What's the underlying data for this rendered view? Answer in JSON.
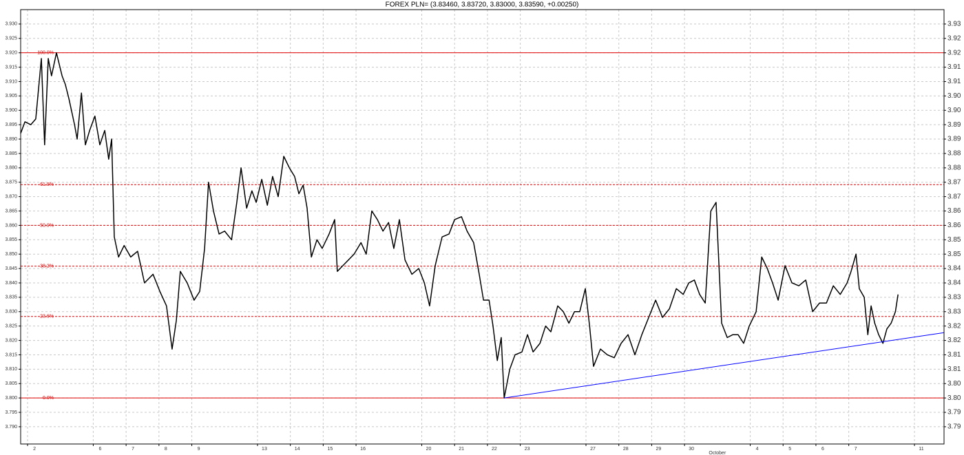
{
  "chart_data": {
    "type": "line",
    "title": "FOREX PLN= (3.83460, 3.83720, 3.83000, 3.83590, +0.00250)",
    "color": "#000000",
    "x": [
      -0.21,
      -0.08,
      0.1,
      0.25,
      0.42,
      0.52,
      0.63,
      0.73,
      0.88,
      1.05,
      1.15,
      1.26,
      1.43,
      1.51,
      1.64,
      1.76,
      1.89,
      2.05,
      2.2,
      2.35,
      2.47,
      2.56,
      2.64,
      2.77,
      2.94,
      3.14,
      3.35,
      3.56,
      3.82,
      4.03,
      4.23,
      4.4,
      4.53,
      4.65,
      4.86,
      5.07,
      5.24,
      5.39,
      5.51,
      5.66,
      5.83,
      6.0,
      6.21,
      6.37,
      6.5,
      6.67,
      6.83,
      6.96,
      7.13,
      7.3,
      7.46,
      7.63,
      7.8,
      7.97,
      8.13,
      8.26,
      8.39,
      8.51,
      8.64,
      8.81,
      8.97,
      9.18,
      9.35,
      9.43,
      9.6,
      9.77,
      9.94,
      10.15,
      10.31,
      10.48,
      10.65,
      10.82,
      10.99,
      11.15,
      11.32,
      11.49,
      11.7,
      11.91,
      12.08,
      12.24,
      12.41,
      12.62,
      12.83,
      13.0,
      13.21,
      13.38,
      13.58,
      13.75,
      13.88,
      14.05,
      14.17,
      14.3,
      14.42,
      14.51,
      14.68,
      14.84,
      15.05,
      15.22,
      15.39,
      15.6,
      15.77,
      15.93,
      16.14,
      16.31,
      16.48,
      16.65,
      16.81,
      16.98,
      17.11,
      17.23,
      17.44,
      17.65,
      17.86,
      18.07,
      18.28,
      18.49,
      18.7,
      18.91,
      19.12,
      19.33,
      19.54,
      19.75,
      19.96,
      20.13,
      20.3,
      20.46,
      20.63,
      20.8,
      20.96,
      21.13,
      21.3,
      21.47,
      21.63,
      21.8,
      21.97,
      22.18,
      22.35,
      22.52,
      22.68,
      22.85,
      23.06,
      23.27,
      23.48,
      23.69,
      23.9,
      24.11,
      24.32,
      24.53,
      24.74,
      24.95,
      25.07,
      25.22,
      25.32,
      25.47,
      25.58,
      25.68,
      25.79,
      25.91,
      26.04,
      26.16,
      26.29,
      26.42,
      26.5
    ],
    "values": [
      3.892,
      3.896,
      3.895,
      3.897,
      3.918,
      3.888,
      3.918,
      3.912,
      3.92,
      3.912,
      3.909,
      3.904,
      3.895,
      3.89,
      3.906,
      3.888,
      3.893,
      3.898,
      3.888,
      3.893,
      3.883,
      3.89,
      3.856,
      3.849,
      3.853,
      3.849,
      3.851,
      3.84,
      3.843,
      3.837,
      3.832,
      3.817,
      3.827,
      3.844,
      3.84,
      3.834,
      3.837,
      3.852,
      3.875,
      3.865,
      3.857,
      3.858,
      3.855,
      3.868,
      3.88,
      3.866,
      3.872,
      3.868,
      3.876,
      3.867,
      3.877,
      3.87,
      3.884,
      3.88,
      3.877,
      3.871,
      3.874,
      3.866,
      3.849,
      3.855,
      3.852,
      3.857,
      3.862,
      3.844,
      3.846,
      3.848,
      3.85,
      3.854,
      3.85,
      3.865,
      3.862,
      3.858,
      3.861,
      3.852,
      3.862,
      3.848,
      3.843,
      3.845,
      3.84,
      3.832,
      3.846,
      3.856,
      3.857,
      3.862,
      3.863,
      3.858,
      3.854,
      3.843,
      3.834,
      3.834,
      3.825,
      3.813,
      3.821,
      3.8,
      3.81,
      3.815,
      3.816,
      3.822,
      3.816,
      3.819,
      3.825,
      3.823,
      3.832,
      3.83,
      3.826,
      3.83,
      3.83,
      3.838,
      3.825,
      3.811,
      3.817,
      3.815,
      3.814,
      3.819,
      3.822,
      3.815,
      3.822,
      3.828,
      3.834,
      3.828,
      3.831,
      3.838,
      3.836,
      3.84,
      3.841,
      3.836,
      3.833,
      3.865,
      3.868,
      3.826,
      3.821,
      3.822,
      3.822,
      3.819,
      3.825,
      3.83,
      3.849,
      3.845,
      3.84,
      3.834,
      3.846,
      3.84,
      3.839,
      3.841,
      3.83,
      3.833,
      3.833,
      3.839,
      3.836,
      3.84,
      3.844,
      3.85,
      3.838,
      3.835,
      3.822,
      3.832,
      3.826,
      3.822,
      3.819,
      3.824,
      3.826,
      3.83,
      3.836
    ],
    "xlim": [
      -0.21,
      27.9
    ],
    "xticks": [
      {
        "value": 0,
        "label": "2"
      },
      {
        "value": 2,
        "label": "6"
      },
      {
        "value": 3,
        "label": "7"
      },
      {
        "value": 4,
        "label": "8"
      },
      {
        "value": 5,
        "label": "9"
      },
      {
        "value": 7,
        "label": "13"
      },
      {
        "value": 8,
        "label": "14"
      },
      {
        "value": 9,
        "label": "15"
      },
      {
        "value": 10,
        "label": "16"
      },
      {
        "value": 12,
        "label": "20"
      },
      {
        "value": 13,
        "label": "21"
      },
      {
        "value": 14,
        "label": "22"
      },
      {
        "value": 15,
        "label": "23"
      },
      {
        "value": 17,
        "label": "27"
      },
      {
        "value": 18,
        "label": "28"
      },
      {
        "value": 19,
        "label": "29"
      },
      {
        "value": 20,
        "label": "30"
      },
      {
        "value": 22,
        "label": "4"
      },
      {
        "value": 23,
        "label": "5"
      },
      {
        "value": 24,
        "label": "6"
      },
      {
        "value": 25,
        "label": "7"
      },
      {
        "value": 27,
        "label": "11"
      }
    ],
    "ylim": [
      3.784,
      3.935
    ],
    "yticks": [
      {
        "value": 3.79,
        "label": "3.790"
      },
      {
        "value": 3.795,
        "label": "3.795"
      },
      {
        "value": 3.8,
        "label": "3.800"
      },
      {
        "value": 3.805,
        "label": "3.805"
      },
      {
        "value": 3.81,
        "label": "3.810"
      },
      {
        "value": 3.815,
        "label": "3.815"
      },
      {
        "value": 3.82,
        "label": "3.820"
      },
      {
        "value": 3.825,
        "label": "3.825"
      },
      {
        "value": 3.83,
        "label": "3.830"
      },
      {
        "value": 3.835,
        "label": "3.835"
      },
      {
        "value": 3.84,
        "label": "3.840"
      },
      {
        "value": 3.845,
        "label": "3.845"
      },
      {
        "value": 3.85,
        "label": "3.850"
      },
      {
        "value": 3.855,
        "label": "3.855"
      },
      {
        "value": 3.86,
        "label": "3.860"
      },
      {
        "value": 3.865,
        "label": "3.865"
      },
      {
        "value": 3.87,
        "label": "3.870"
      },
      {
        "value": 3.875,
        "label": "3.875"
      },
      {
        "value": 3.88,
        "label": "3.880"
      },
      {
        "value": 3.885,
        "label": "3.885"
      },
      {
        "value": 3.89,
        "label": "3.890"
      },
      {
        "value": 3.895,
        "label": "3.895"
      },
      {
        "value": 3.9,
        "label": "3.900"
      },
      {
        "value": 3.905,
        "label": "3.905"
      },
      {
        "value": 3.91,
        "label": "3.910"
      },
      {
        "value": 3.915,
        "label": "3.915"
      },
      {
        "value": 3.92,
        "label": "3.920"
      },
      {
        "value": 3.925,
        "label": "3.925"
      },
      {
        "value": 3.93,
        "label": "3.930"
      }
    ],
    "y2lim": [
      3.784,
      3.935
    ],
    "y2ticks": [
      3.79,
      {
        "value": 3.795,
        "label": "3.79"
      },
      {
        "value": 3.8,
        "label": "3.80"
      },
      {
        "value": 3.805,
        "label": "3.80"
      },
      3.81,
      {
        "value": 3.815,
        "label": "3.81"
      },
      3.82,
      {
        "value": 3.825,
        "label": "3.82"
      },
      3.83,
      {
        "value": 3.835,
        "label": "3.83"
      },
      3.84,
      {
        "value": 3.845,
        "label": "3.84"
      },
      3.85,
      {
        "value": 3.855,
        "label": "3.85"
      },
      3.86,
      {
        "value": 3.865,
        "label": "3.86"
      },
      3.87,
      {
        "value": 3.875,
        "label": "3.87"
      },
      3.88,
      {
        "value": 3.885,
        "label": "3.88"
      },
      3.89,
      {
        "value": 3.895,
        "label": "3.89"
      },
      {
        "value": 3.9,
        "label": "3.90"
      },
      {
        "value": 3.905,
        "label": "3.90"
      },
      3.91,
      {
        "value": 3.915,
        "label": "3.91"
      },
      3.92,
      {
        "value": 3.925,
        "label": "3.92"
      },
      3.93
    ],
    "grid": true,
    "levels_color": "#e00000",
    "levels": [
      {
        "label": "100.0%",
        "value": 3.92,
        "style": "solid"
      },
      {
        "label": "61.8%",
        "value": 3.87416,
        "style": "dashed"
      },
      {
        "label": "50.0%",
        "value": 3.86,
        "style": "dashed"
      },
      {
        "label": "38.2%",
        "value": 3.84584,
        "style": "dashed"
      },
      {
        "label": "23.6%",
        "value": 3.82832,
        "style": "dashed"
      },
      {
        "label": "0.0%",
        "value": 3.8,
        "style": "solid"
      }
    ],
    "trendline": {
      "color": "#0000ff",
      "x": [
        14.51,
        27.9
      ],
      "y": [
        3.8,
        3.8227
      ]
    },
    "annotations": [
      {
        "text": "October",
        "x": 21
      }
    ]
  }
}
